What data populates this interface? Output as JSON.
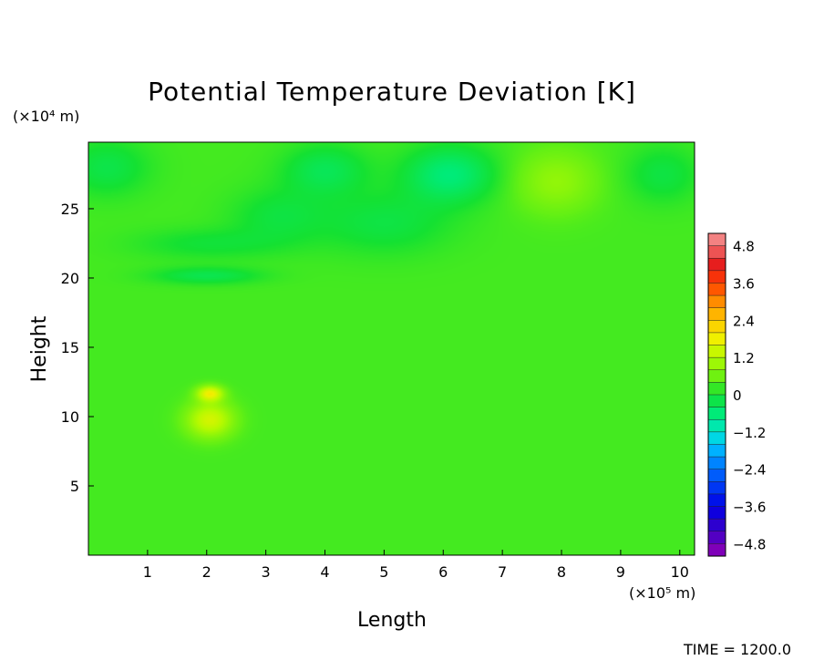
{
  "chart_data": {
    "type": "heatmap",
    "title": "Potential Temperature Deviation [K]",
    "xlabel": "Length",
    "ylabel": "Height",
    "x_unit": "(×10⁵ m)",
    "y_unit": "(×10⁴ m)",
    "xlim": [
      0,
      10.25
    ],
    "ylim": [
      0,
      29.8
    ],
    "x_ticks": [
      "1",
      "2",
      "3",
      "4",
      "5",
      "6",
      "7",
      "8",
      "9",
      "10"
    ],
    "y_ticks": [
      "5",
      "10",
      "15",
      "20",
      "25"
    ],
    "colorbar": {
      "min": -5.2,
      "max": 5.2,
      "ticks": [
        "4.8",
        "3.6",
        "2.4",
        "1.2",
        "0",
        "−1.2",
        "−2.4",
        "−3.6",
        "−4.8"
      ]
    },
    "background_value": 0.3,
    "features": [
      {
        "x": 0.3,
        "y": 28.0,
        "value": -0.5,
        "sx": 0.7,
        "sy": 2.0
      },
      {
        "x": 2.0,
        "y": 22.5,
        "value": -0.35,
        "sx": 1.2,
        "sy": 1.1
      },
      {
        "x": 2.0,
        "y": 20.2,
        "value": -0.55,
        "sx": 0.9,
        "sy": 0.6
      },
      {
        "x": 3.2,
        "y": 24.5,
        "value": -0.4,
        "sx": 0.8,
        "sy": 2.0
      },
      {
        "x": 4.0,
        "y": 27.8,
        "value": -0.6,
        "sx": 0.7,
        "sy": 1.8
      },
      {
        "x": 5.0,
        "y": 24.0,
        "value": -0.45,
        "sx": 1.1,
        "sy": 2.2
      },
      {
        "x": 6.1,
        "y": 27.5,
        "value": -0.9,
        "sx": 0.75,
        "sy": 2.0
      },
      {
        "x": 7.9,
        "y": 27.0,
        "value": 0.6,
        "sx": 0.7,
        "sy": 2.3
      },
      {
        "x": 9.7,
        "y": 27.5,
        "value": -0.45,
        "sx": 0.6,
        "sy": 2.0
      },
      {
        "x": 2.05,
        "y": 9.8,
        "value": 1.2,
        "sx": 0.4,
        "sy": 1.3
      },
      {
        "x": 2.05,
        "y": 11.7,
        "value": 1.45,
        "sx": 0.22,
        "sy": 0.55
      }
    ],
    "annotation": "TIME = 1200.0"
  }
}
